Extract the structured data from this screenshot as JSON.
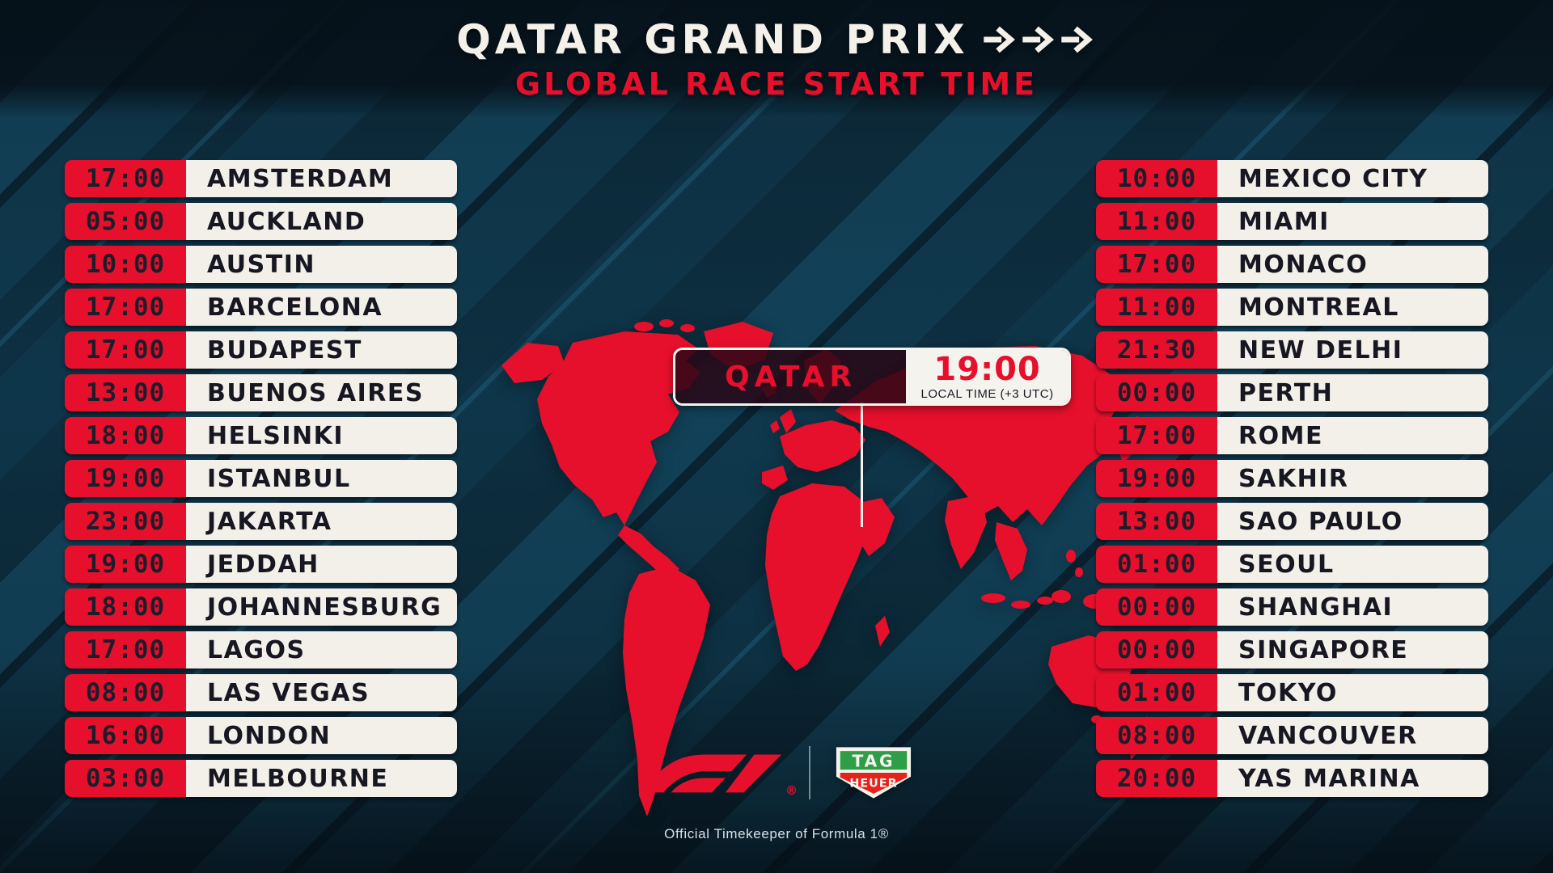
{
  "header": {
    "title": "QATAR GRAND PRIX",
    "subtitle": "GLOBAL RACE START TIME",
    "arrow_icon": {
      "name": "arrow-right-icon",
      "glyph": "→",
      "count": 3
    }
  },
  "left_column": [
    {
      "time": "17:00",
      "city": "AMSTERDAM"
    },
    {
      "time": "05:00",
      "city": "AUCKLAND"
    },
    {
      "time": "10:00",
      "city": "AUSTIN"
    },
    {
      "time": "17:00",
      "city": "BARCELONA"
    },
    {
      "time": "17:00",
      "city": "BUDAPEST"
    },
    {
      "time": "13:00",
      "city": "BUENOS AIRES"
    },
    {
      "time": "18:00",
      "city": "HELSINKI"
    },
    {
      "time": "19:00",
      "city": "ISTANBUL"
    },
    {
      "time": "23:00",
      "city": "JAKARTA"
    },
    {
      "time": "19:00",
      "city": "JEDDAH"
    },
    {
      "time": "18:00",
      "city": "JOHANNESBURG"
    },
    {
      "time": "17:00",
      "city": "LAGOS"
    },
    {
      "time": "08:00",
      "city": "LAS VEGAS"
    },
    {
      "time": "16:00",
      "city": "LONDON"
    },
    {
      "time": "03:00",
      "city": "MELBOURNE"
    }
  ],
  "right_column": [
    {
      "time": "10:00",
      "city": "MEXICO CITY"
    },
    {
      "time": "11:00",
      "city": "MIAMI"
    },
    {
      "time": "17:00",
      "city": "MONACO"
    },
    {
      "time": "11:00",
      "city": "MONTREAL"
    },
    {
      "time": "21:30",
      "city": "NEW DELHI"
    },
    {
      "time": "00:00",
      "city": "PERTH"
    },
    {
      "time": "17:00",
      "city": "ROME"
    },
    {
      "time": "19:00",
      "city": "SAKHIR"
    },
    {
      "time": "13:00",
      "city": "SAO PAULO"
    },
    {
      "time": "01:00",
      "city": "SEOUL"
    },
    {
      "time": "00:00",
      "city": "SHANGHAI"
    },
    {
      "time": "00:00",
      "city": "SINGAPORE"
    },
    {
      "time": "01:00",
      "city": "TOKYO"
    },
    {
      "time": "08:00",
      "city": "VANCOUVER"
    },
    {
      "time": "20:00",
      "city": "YAS MARINA"
    }
  ],
  "map_callout": {
    "country": "QATAR",
    "time": "19:00",
    "local_label": "LOCAL TIME (+3 UTC)"
  },
  "footer": {
    "f1_wordmark": "F1",
    "registered_mark": "®",
    "tag_top": "TAG",
    "tag_bottom": "HEUER",
    "caption": "Official Timekeeper of Formula 1®"
  },
  "colors": {
    "accent_red": "#e6102c",
    "off_white": "#f3f0ea",
    "background_dark": "#0c2a39",
    "stripe_teal": "#1a5e7c",
    "dark_text": "#171722",
    "tag_green": "#2f9e48",
    "tag_red": "#e3231c"
  }
}
